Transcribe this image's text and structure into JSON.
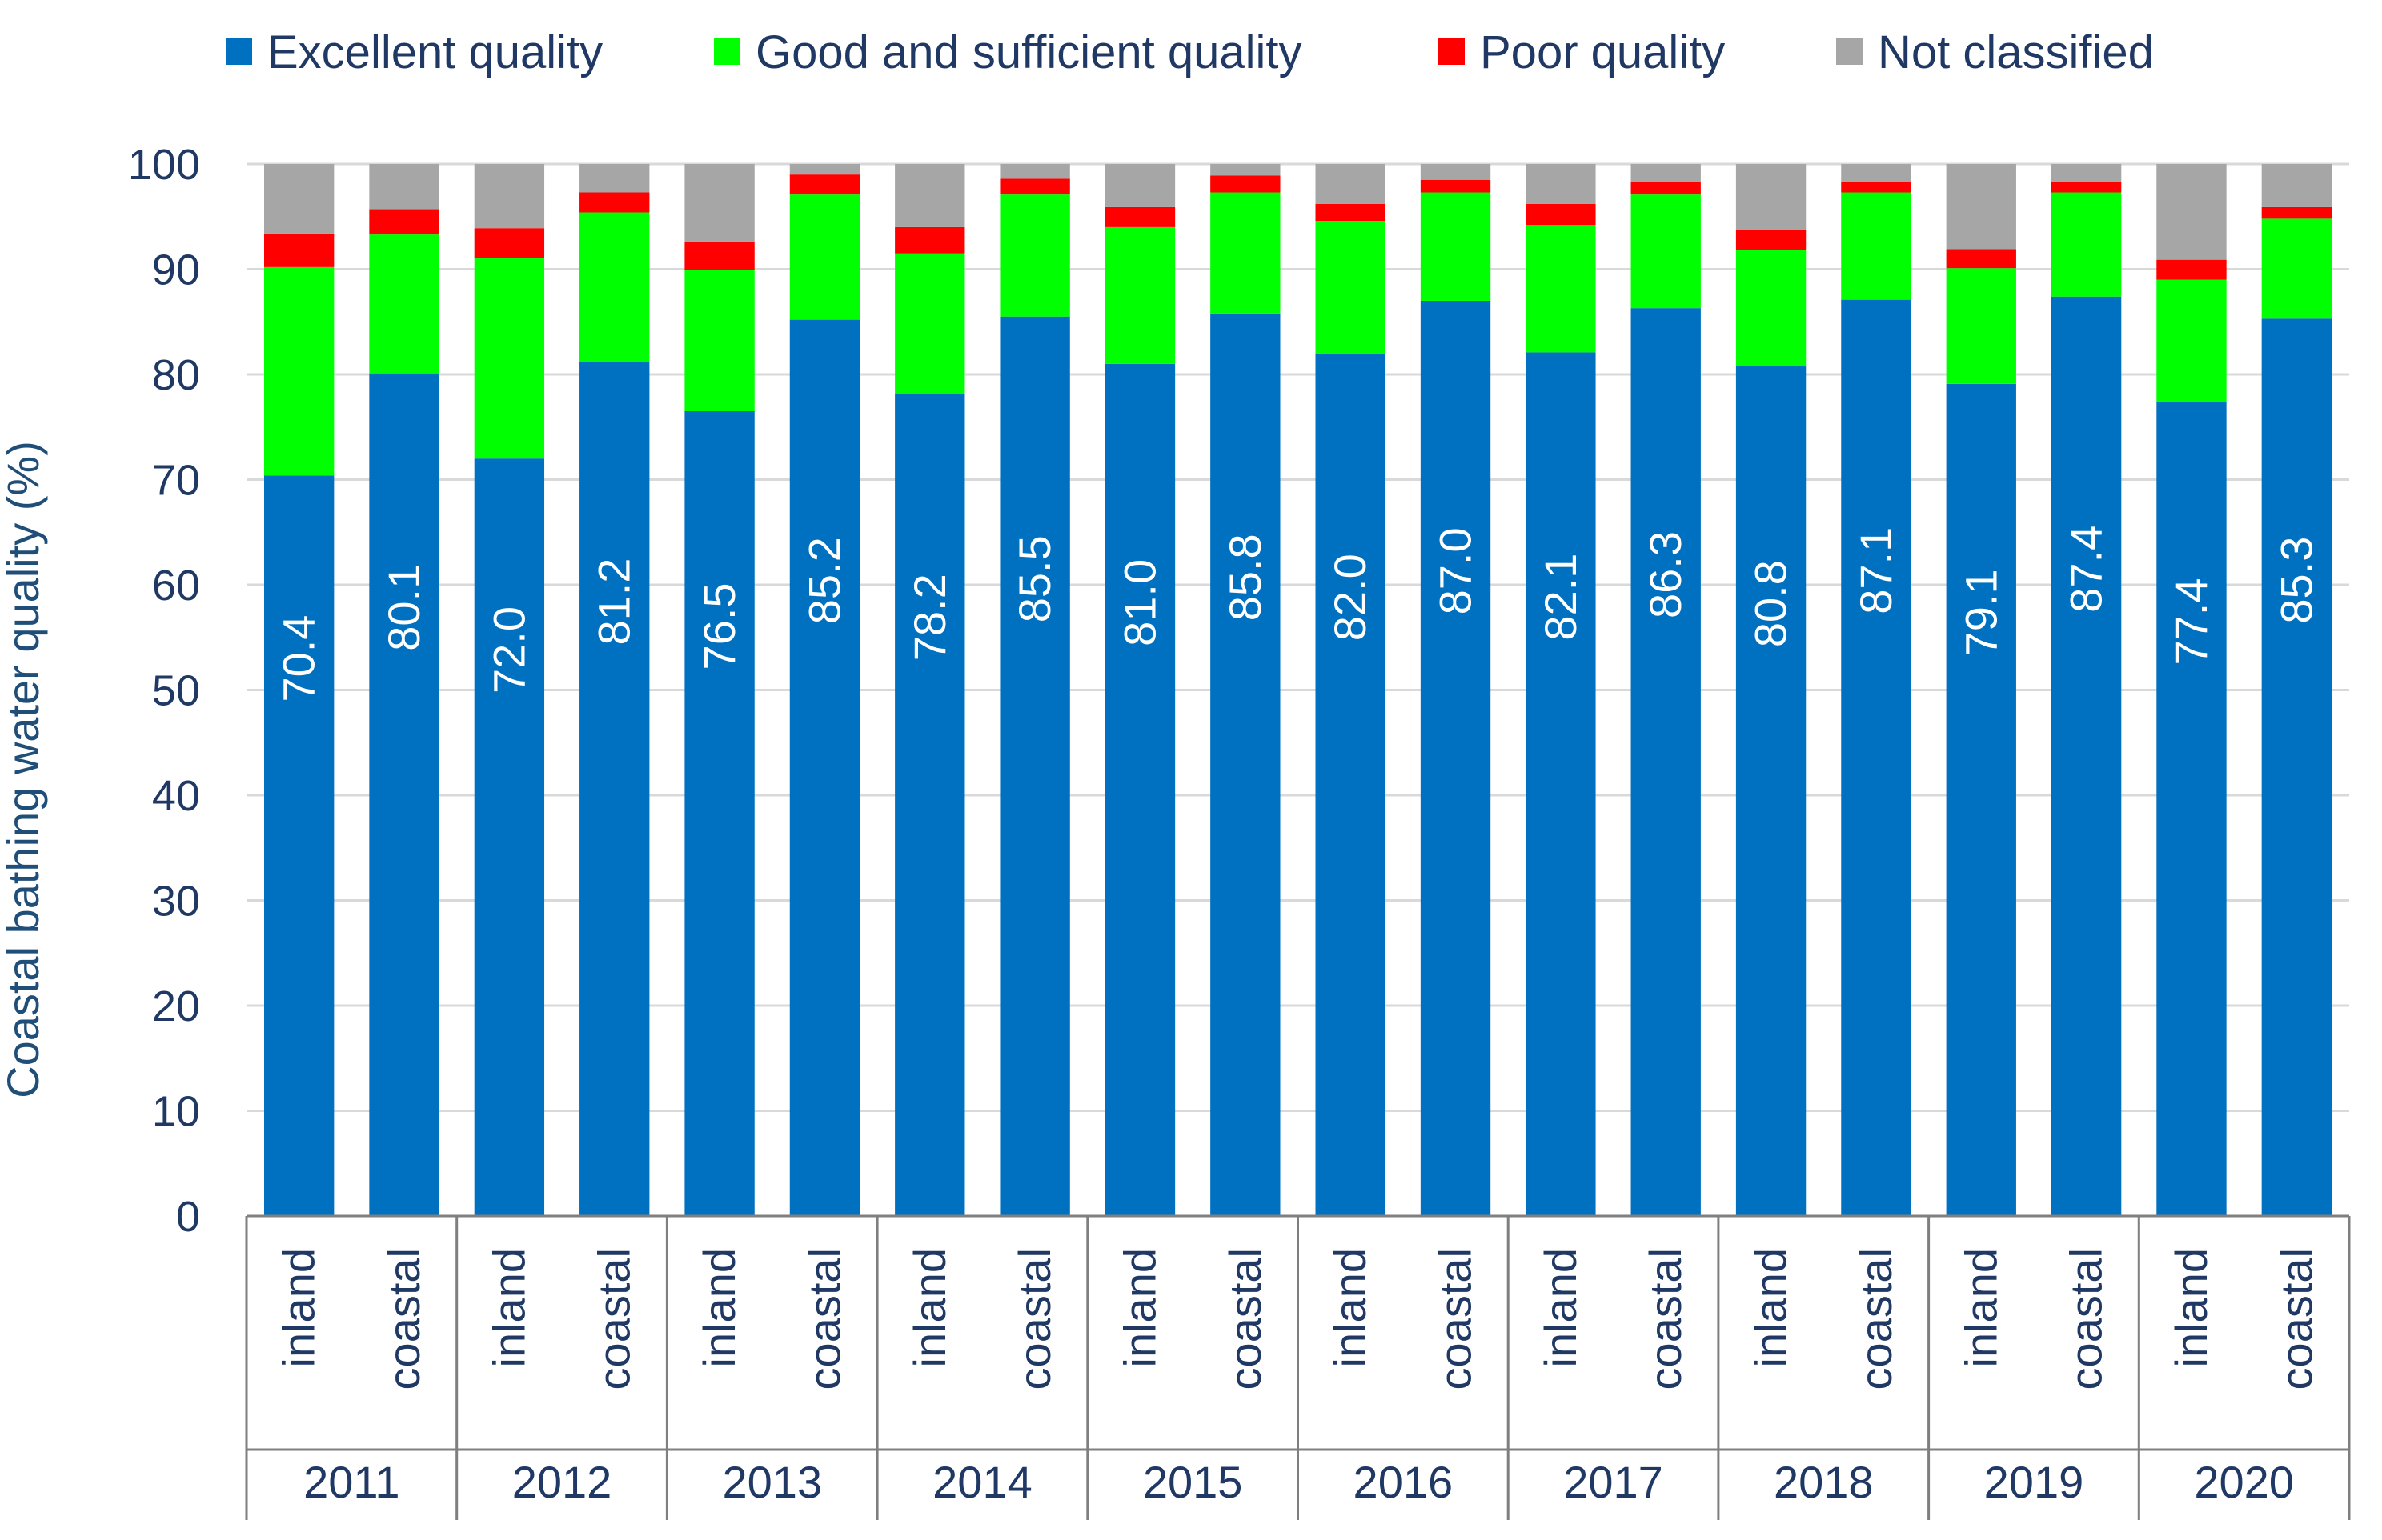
{
  "chart_data": {
    "type": "bar",
    "stacked": true,
    "ylabel": "Coastal bathing water quality (%)",
    "xlabel": "",
    "ylim": [
      0,
      100
    ],
    "yticks": [
      0,
      10,
      20,
      30,
      40,
      50,
      60,
      70,
      80,
      90,
      100
    ],
    "legend_position": "top",
    "groups": [
      "2011",
      "2012",
      "2013",
      "2014",
      "2015",
      "2016",
      "2017",
      "2018",
      "2019",
      "2020"
    ],
    "subcategories": [
      "inland",
      "coastal"
    ],
    "series": [
      {
        "name": "Excellent quality",
        "color": "#0070c0",
        "values": [
          70.4,
          80.1,
          72.0,
          81.2,
          76.5,
          85.2,
          78.2,
          85.5,
          81.0,
          85.8,
          82.0,
          87.0,
          82.1,
          86.3,
          80.8,
          87.1,
          79.1,
          87.4,
          77.4,
          85.3
        ],
        "labels": [
          "70.4",
          "80.1",
          "72.0",
          "81.2",
          "76.5",
          "85.2",
          "78.2",
          "85.5",
          "81.0",
          "85.8",
          "82.0",
          "87.0",
          "82.1",
          "86.3",
          "80.8",
          "87.1",
          "79.1",
          "87.4",
          "77.4",
          "85.3"
        ]
      },
      {
        "name": "Good and sufficient quality",
        "color": "#00ff00",
        "values": [
          19.8,
          13.2,
          19.1,
          14.2,
          13.4,
          11.9,
          13.3,
          11.6,
          13.0,
          11.5,
          12.6,
          10.3,
          12.1,
          10.8,
          11.0,
          10.2,
          11.0,
          9.9,
          11.6,
          9.5
        ]
      },
      {
        "name": "Poor quality",
        "color": "#ff0000",
        "values": [
          3.2,
          2.4,
          2.8,
          1.9,
          2.7,
          1.9,
          2.5,
          1.5,
          1.9,
          1.6,
          1.6,
          1.2,
          2.0,
          1.2,
          1.9,
          1.0,
          1.8,
          1.0,
          1.9,
          1.1
        ]
      },
      {
        "name": "Not classified",
        "color": "#a6a6a6",
        "values": [
          6.6,
          4.3,
          6.1,
          2.7,
          7.4,
          1.0,
          6.0,
          1.4,
          4.1,
          1.1,
          3.8,
          1.5,
          3.8,
          1.7,
          6.3,
          1.7,
          8.1,
          1.7,
          9.1,
          4.1
        ]
      }
    ]
  }
}
